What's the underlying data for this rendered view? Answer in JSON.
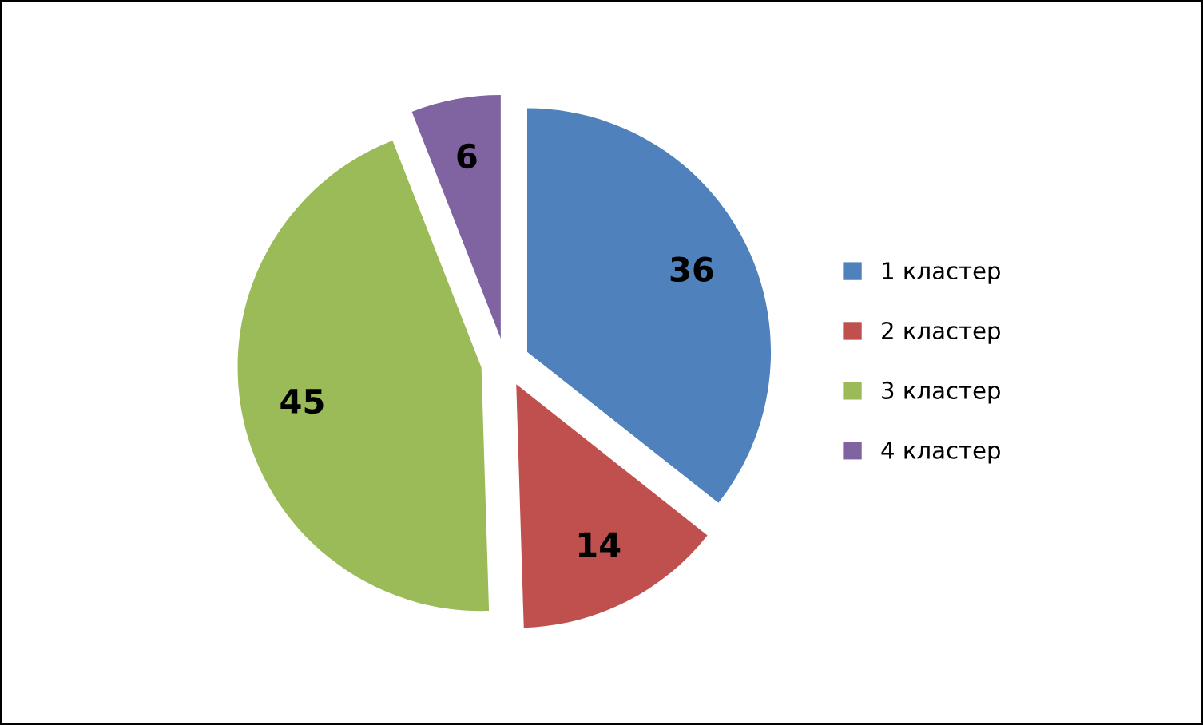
{
  "chart_data": {
    "type": "pie",
    "categories": [
      "1 кластер",
      "2 кластер",
      "3 кластер",
      "4 кластер"
    ],
    "values": [
      36,
      14,
      45,
      6
    ],
    "colors": [
      "#4f81bd",
      "#c0504d",
      "#9bbb59",
      "#8064a2"
    ],
    "data_labels": true,
    "legend": "right"
  }
}
